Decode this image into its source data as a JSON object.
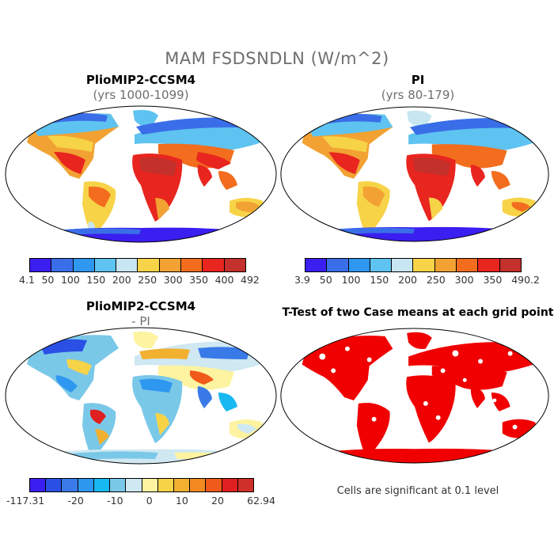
{
  "figure_title": "MAM FSDSNDLN (W/m^2)",
  "panels": {
    "top_left": {
      "title": "PlioMIP2-CCSM4",
      "subtitle": "(yrs 1000-1099)"
    },
    "top_right": {
      "title": "PI",
      "subtitle": "(yrs 80-179)"
    },
    "bottom_left": {
      "title": "PlioMIP2-CCSM4",
      "subtitle": "- PI"
    },
    "bottom_right": {
      "title": "T-Test of two Case means at each grid point",
      "note": "Cells are significant at 0.1 level"
    }
  },
  "colorbars": {
    "top_left": {
      "colors": [
        "#3b1ef0",
        "#3a6ee8",
        "#2e97f0",
        "#5ec3f0",
        "#c8e6f2",
        "#f7d348",
        "#f2a233",
        "#f26d1e",
        "#e8251f",
        "#c4302b"
      ],
      "labels": [
        "4.1",
        "50",
        "100",
        "150",
        "200",
        "250",
        "300",
        "350",
        "400",
        "492"
      ]
    },
    "top_right": {
      "colors": [
        "#3b1ef0",
        "#3a6ee8",
        "#2e97f0",
        "#5ec3f0",
        "#c8e6f2",
        "#f7d348",
        "#f2a233",
        "#f26d1e",
        "#e8251f",
        "#c4302b"
      ],
      "labels": [
        "3.9",
        "50",
        "100",
        "150",
        "200",
        "250",
        "300",
        "350",
        "490.2"
      ]
    },
    "bottom_left": {
      "colors": [
        "#3b1ef0",
        "#2a50e6",
        "#3a7ae8",
        "#2e97f0",
        "#18b8f0",
        "#7ac8e8",
        "#cfe8f2",
        "#fdf3a0",
        "#f7d348",
        "#f2b030",
        "#f28a20",
        "#f05a1a",
        "#e02020",
        "#d0302a"
      ],
      "labels": [
        "-117.31",
        "-20",
        "-10",
        "0",
        "10",
        "20",
        "62.94"
      ]
    }
  }
}
